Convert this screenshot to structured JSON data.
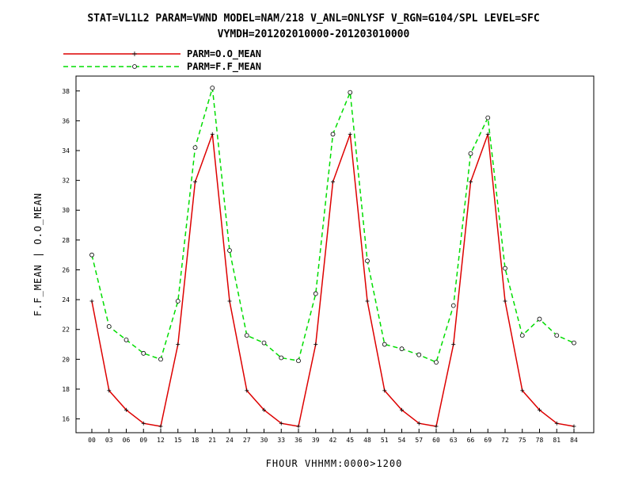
{
  "chart_data": {
    "type": "line",
    "title": "STAT=VL1L2 PARAM=VWND MODEL=NAM/218 V_ANL=ONLYSF V_RGN=G104/SPL LEVEL=SFC",
    "subtitle": "VYMDH=201202010000-201203010000",
    "xlabel": "FHOUR VHHMM:0000>1200",
    "ylabel": "F.F_MEAN | O.O_MEAN",
    "categories": [
      "00",
      "03",
      "06",
      "09",
      "12",
      "15",
      "18",
      "21",
      "24",
      "27",
      "30",
      "33",
      "36",
      "39",
      "42",
      "45",
      "48",
      "51",
      "54",
      "57",
      "60",
      "63",
      "66",
      "69",
      "72",
      "75",
      "78",
      "81",
      "84"
    ],
    "ylim": [
      15,
      39
    ],
    "yticks": [
      16,
      18,
      20,
      22,
      24,
      26,
      28,
      30,
      32,
      34,
      36,
      38
    ],
    "grid": false,
    "legend_position": "top-left",
    "series": [
      {
        "name": "PARM=O.O_MEAN",
        "color": "#dd0000",
        "dash": "solid",
        "marker": "plus",
        "values": [
          23.9,
          17.9,
          16.6,
          15.7,
          15.5,
          21.0,
          31.9,
          35.1,
          23.9,
          17.9,
          16.6,
          15.7,
          15.5,
          21.0,
          31.9,
          35.1,
          23.9,
          17.9,
          16.6,
          15.7,
          15.5,
          21.0,
          31.9,
          35.1,
          23.9,
          17.9,
          16.6,
          15.7,
          15.5
        ]
      },
      {
        "name": "PARM=F.F_MEAN",
        "color": "#00dd00",
        "dash": "dashed",
        "marker": "circle",
        "values": [
          27.0,
          22.2,
          21.3,
          20.4,
          20.0,
          23.9,
          34.2,
          38.2,
          27.3,
          21.6,
          21.1,
          20.1,
          19.9,
          24.4,
          35.1,
          37.9,
          26.6,
          21.0,
          20.7,
          20.3,
          19.8,
          23.6,
          33.8,
          36.2,
          26.1,
          21.6,
          22.7,
          21.6,
          21.1
        ]
      }
    ]
  }
}
